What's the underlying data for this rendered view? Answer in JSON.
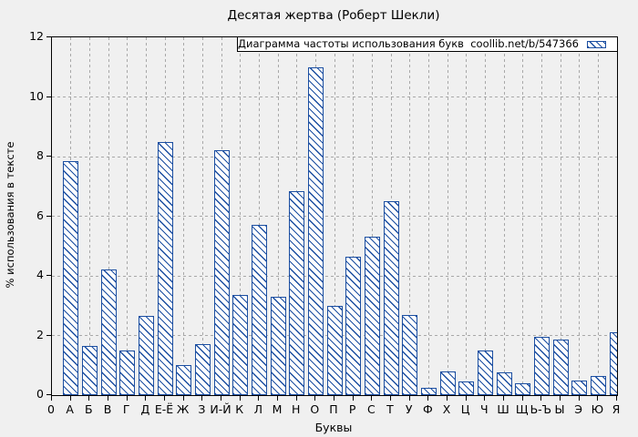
{
  "title": "Десятая жертва (Роберт Шекли)",
  "legend": {
    "label": "Диаграмма частоты использования букв  coollib.net/b/547366",
    "swatch": "hatched-bar-swatch"
  },
  "colors": {
    "bar": "#1b4ea1",
    "background": "#f0f0f0",
    "grid": "#a8a8a8",
    "axis": "#000000",
    "legend_background": "#ffffff"
  },
  "chart_data": {
    "type": "bar",
    "title": "Десятая жертва (Роберт Шекли)",
    "legend_label": "Диаграмма частоты использования букв  coollib.net/b/547366",
    "legend_position": "top-right-inside",
    "xlabel": "Буквы",
    "ylabel": "% использования в тексте",
    "x_first_tick_label": "0",
    "categories": [
      "А",
      "Б",
      "В",
      "Г",
      "Д",
      "Е-Ё",
      "Ж",
      "З",
      "И-Й",
      "К",
      "Л",
      "М",
      "Н",
      "О",
      "П",
      "Р",
      "С",
      "Т",
      "У",
      "Ф",
      "Х",
      "Ц",
      "Ч",
      "Ш",
      "Щ",
      "Ь-Ъ",
      "Ы",
      "Э",
      "Ю",
      "Я"
    ],
    "values": [
      7.85,
      1.65,
      4.2,
      1.5,
      2.65,
      8.5,
      1.0,
      1.7,
      8.2,
      3.35,
      5.7,
      3.3,
      6.85,
      11.0,
      3.0,
      4.65,
      5.3,
      6.5,
      2.7,
      0.25,
      0.8,
      0.45,
      1.5,
      0.75,
      0.4,
      1.95,
      1.85,
      0.5,
      0.65,
      2.1
    ],
    "ylim": [
      0,
      12
    ],
    "yticks": [
      0,
      2,
      4,
      6,
      8,
      10,
      12
    ],
    "grid": true,
    "hatch": "diagonal-backslash",
    "last_bar_clipped_at_right_border": true
  }
}
